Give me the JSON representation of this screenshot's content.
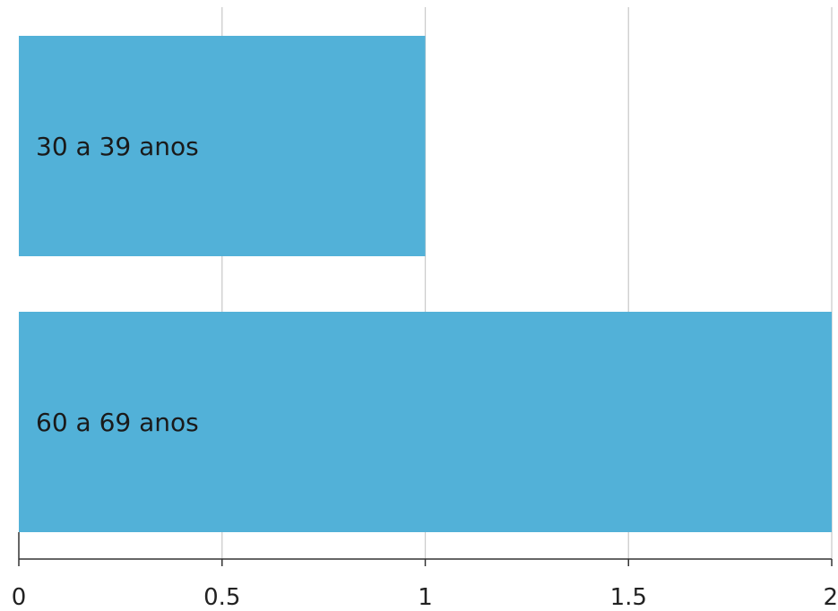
{
  "chart_data": {
    "type": "bar",
    "orientation": "horizontal",
    "categories": [
      "30 a 39 anos",
      "60 a 69 anos"
    ],
    "values": [
      1,
      2
    ],
    "title": "",
    "xlabel": "",
    "ylabel": "",
    "xlim": [
      0,
      2
    ],
    "x_ticks": [
      0,
      0.5,
      1,
      1.5,
      2
    ],
    "x_tick_labels": [
      "0",
      "0.5",
      "1",
      "1.5",
      "2"
    ],
    "grid": true,
    "legend": "none",
    "bar_color": "#52b1d8",
    "grid_color": "#cccccc",
    "axis_color": "#333333"
  }
}
